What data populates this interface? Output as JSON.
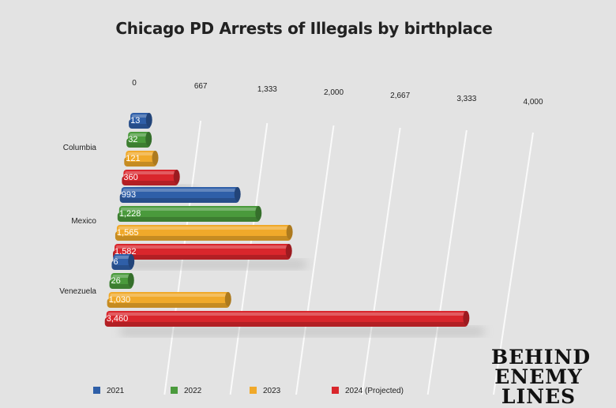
{
  "chart_data": {
    "type": "bar",
    "orientation": "horizontal",
    "style": "3d-perspective",
    "title": "Chicago PD Arrests of Illegals by birthplace",
    "categories": [
      "Columbia",
      "Mexico",
      "Venezuela"
    ],
    "series": [
      {
        "name": "2021",
        "color": "#2f5fa8",
        "values": [
          13,
          993,
          6
        ],
        "labels": [
          "13",
          "993",
          "6"
        ]
      },
      {
        "name": "2022",
        "color": "#4a9a3c",
        "values": [
          32,
          1228,
          26
        ],
        "labels": [
          "32",
          "1,228",
          "26"
        ]
      },
      {
        "name": "2023",
        "color": "#f0a92a",
        "values": [
          121,
          1565,
          1030
        ],
        "labels": [
          "121",
          "1,565",
          "1,030"
        ]
      },
      {
        "name": "2024 (Projected)",
        "color": "#d9262c",
        "values": [
          360,
          1582,
          3460
        ],
        "labels": [
          "360",
          "1,582",
          "3,460"
        ]
      }
    ],
    "xlim": [
      0,
      4000
    ],
    "x_ticks": [
      "0",
      "667",
      "1,333",
      "2,000",
      "2,667",
      "3,333",
      "4,000"
    ],
    "grid": true,
    "legend_position": "bottom"
  },
  "watermark": {
    "lines": [
      "BEHIND",
      "ENEMY",
      "LINES"
    ]
  }
}
